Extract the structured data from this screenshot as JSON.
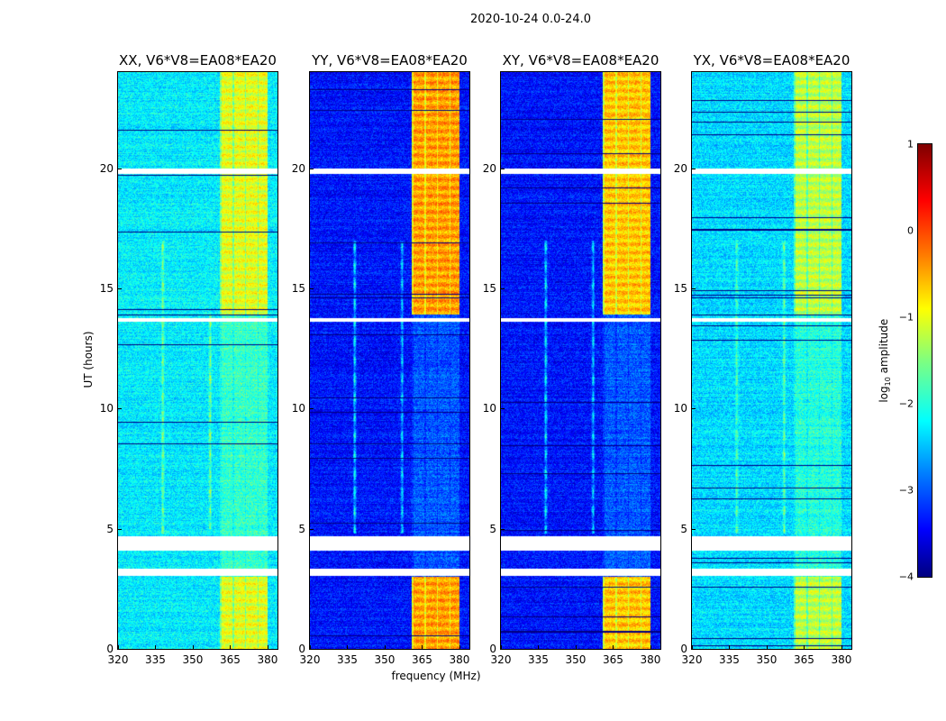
{
  "suptitle": "2020-10-24 0.0-24.0",
  "chart_data": {
    "type": "heatmap",
    "xlabel": "frequency (MHz)",
    "ylabel": "UT (hours)",
    "xlim": [
      320,
      384
    ],
    "ylim": [
      0,
      24
    ],
    "xticks": [
      "320",
      "335",
      "350",
      "365",
      "380"
    ],
    "yticks": [
      "0",
      "5",
      "10",
      "15",
      "20"
    ],
    "colormap": "jet",
    "colorbar": {
      "label": "log10 amplitude",
      "label_main": "log",
      "label_sub": "10",
      "label_rest": " amplitude",
      "range": [
        -4,
        1
      ],
      "ticks": [
        "1",
        "0",
        "−1",
        "−2",
        "−3",
        "−4"
      ]
    },
    "flagged_hours": [
      [
        19.75,
        20.0
      ],
      [
        4.1,
        4.7
      ],
      [
        3.05,
        3.35
      ],
      [
        13.6,
        13.75
      ]
    ],
    "band_mhz": [
      361,
      380
    ],
    "band_strong_hours": [
      [
        0,
        3
      ],
      [
        13.9,
        24
      ]
    ],
    "panels": [
      {
        "title": "XX, V6*V8=EA08*EA20",
        "base": -2.2,
        "band": -1.0,
        "rfi": [
          {
            "f": 338,
            "h": [
              4.8,
              17
            ],
            "amp": 0.9
          },
          {
            "f": 357,
            "h": [
              5,
              14
            ],
            "amp": 1.0
          }
        ]
      },
      {
        "title": "YY, V6*V8=EA08*EA20",
        "base": -3.3,
        "band": -0.4,
        "rfi": [
          {
            "f": 338,
            "h": [
              4.8,
              17
            ],
            "amp": 1.6
          },
          {
            "f": 357,
            "h": [
              4.8,
              17
            ],
            "amp": 1.3
          }
        ]
      },
      {
        "title": "XY, V6*V8=EA08*EA20",
        "base": -3.3,
        "band": -0.6,
        "rfi": [
          {
            "f": 338,
            "h": [
              4.8,
              17
            ],
            "amp": 1.5
          },
          {
            "f": 357,
            "h": [
              4.8,
              17
            ],
            "amp": 1.3
          }
        ]
      },
      {
        "title": "YX, V6*V8=EA08*EA20",
        "base": -2.3,
        "band": -1.2,
        "rfi": [
          {
            "f": 338,
            "h": [
              4.8,
              17
            ],
            "amp": 0.8
          },
          {
            "f": 357,
            "h": [
              4.8,
              17
            ],
            "amp": 0.9
          }
        ]
      }
    ]
  }
}
